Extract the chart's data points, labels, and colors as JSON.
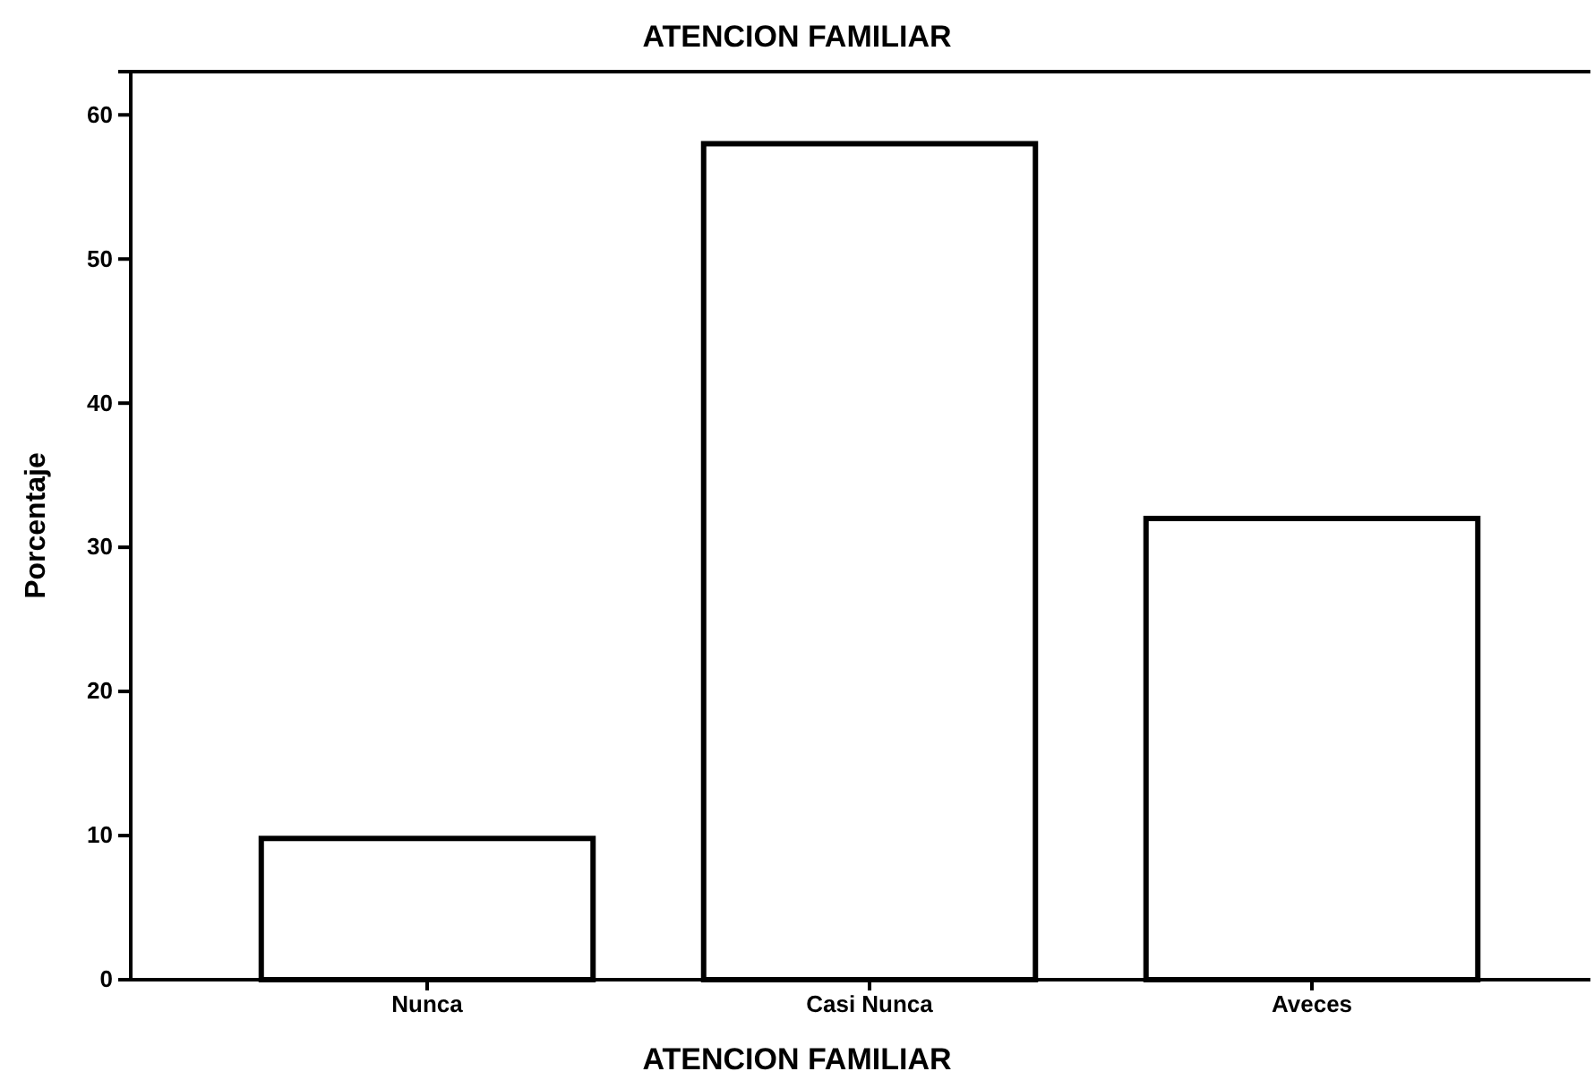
{
  "chart_data": {
    "type": "bar",
    "title": "ATENCION FAMILIAR",
    "xlabel": "ATENCION FAMILIAR",
    "ylabel": "Porcentaje",
    "categories": [
      "Nunca",
      "Casi Nunca",
      "Aveces"
    ],
    "values": [
      9.8,
      58,
      32
    ],
    "color": "#ffffff",
    "ylim": [
      0,
      63
    ],
    "yticks": [
      0,
      10,
      20,
      30,
      40,
      50,
      60
    ],
    "grid": false
  }
}
